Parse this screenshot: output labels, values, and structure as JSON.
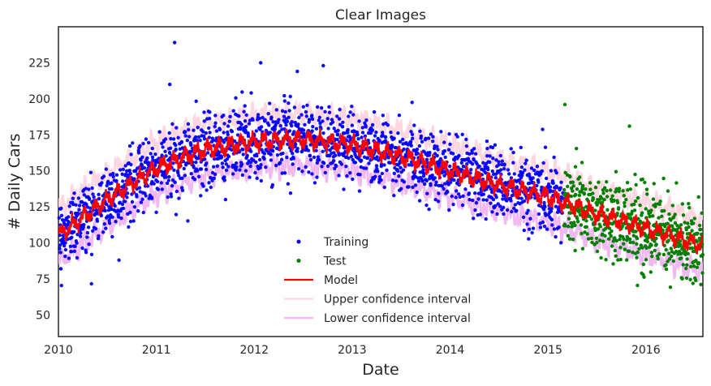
{
  "chart_data": {
    "type": "scatter",
    "title": "Clear Images",
    "xlabel": "Date",
    "ylabel": "# Daily Cars",
    "x_tick_labels": [
      "2010",
      "2011",
      "2012",
      "2013",
      "2014",
      "2015",
      "2016"
    ],
    "y_tick_labels": [
      "50",
      "75",
      "100",
      "125",
      "150",
      "175",
      "200",
      "225"
    ],
    "xlim": [
      "2010-01-01",
      "2016-08-01"
    ],
    "ylim": [
      35,
      250
    ],
    "grid": false,
    "legend_position": "bottom-center",
    "split_date": "2015-03-01",
    "series": [
      {
        "name": "Training",
        "style": "points",
        "color": "#0000ff",
        "x_range": [
          "2010-01-01",
          "2015-03-01"
        ]
      },
      {
        "name": "Test",
        "style": "points",
        "color": "#008000",
        "x_range": [
          "2015-03-01",
          "2016-08-01"
        ]
      },
      {
        "name": "Model",
        "style": "line",
        "color": "#ff0000"
      },
      {
        "name": "Upper confidence interval",
        "style": "line",
        "color": "#ffd6e0"
      },
      {
        "name": "Lower confidence interval",
        "style": "line",
        "color": "#f2b8f2"
      }
    ],
    "model_trend": {
      "x": [
        "2010-01-01",
        "2010-07-01",
        "2011-01-01",
        "2011-07-01",
        "2012-01-01",
        "2012-07-01",
        "2013-01-01",
        "2013-07-01",
        "2014-01-01",
        "2014-07-01",
        "2015-01-01",
        "2015-07-01",
        "2016-01-01",
        "2016-08-01"
      ],
      "y": [
        105,
        130,
        152,
        165,
        170,
        172,
        168,
        160,
        150,
        140,
        132,
        120,
        110,
        98
      ]
    },
    "confidence_offset": 18,
    "outliers": [
      {
        "x": "2011-03-10",
        "y": 239
      },
      {
        "x": "2012-01-25",
        "y": 225
      },
      {
        "x": "2012-06-10",
        "y": 219
      },
      {
        "x": "2012-09-15",
        "y": 223
      },
      {
        "x": "2011-02-20",
        "y": 210
      },
      {
        "x": "2015-03-05",
        "y": 196
      },
      {
        "x": "2015-11-01",
        "y": 181
      },
      {
        "x": "2010-01-10",
        "y": 82
      }
    ]
  }
}
